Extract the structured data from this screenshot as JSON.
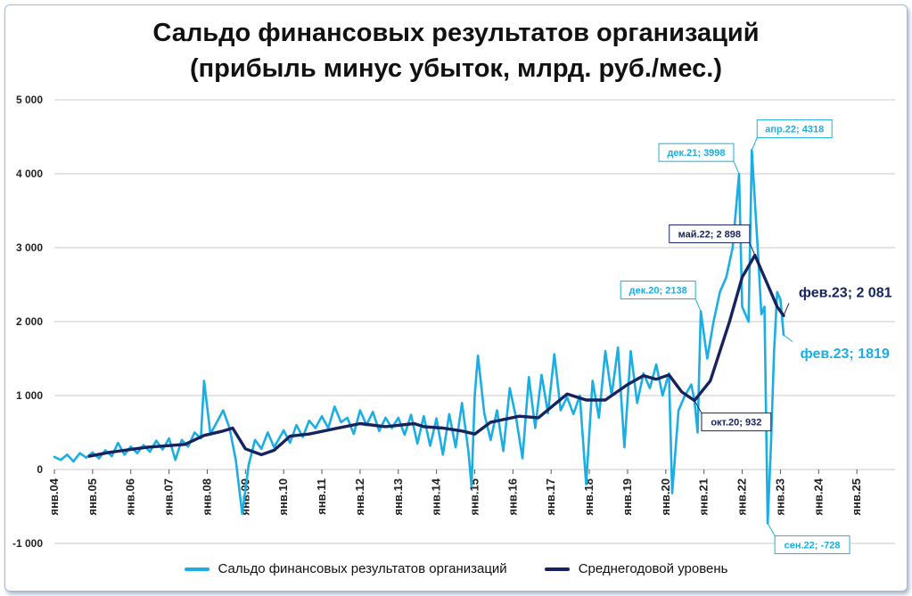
{
  "colors": {
    "monthly": "#1aaee3",
    "average": "#16235e",
    "grid": "#c9c9c9"
  },
  "chart_data": {
    "type": "line",
    "title_line1": "Сальдо финансовых результатов организаций",
    "title_line2": "(прибыль минус убыток, млрд. руб./мес.)",
    "xlabel": "",
    "ylabel": "",
    "x_start": "2004-01",
    "xlim": [
      "2004-01",
      "2026-01"
    ],
    "ylim": [
      -1000,
      5000
    ],
    "yticks": [
      {
        "value": 5000,
        "label": "5 000"
      },
      {
        "value": 4000,
        "label": "4 000"
      },
      {
        "value": 3000,
        "label": "3 000"
      },
      {
        "value": 2000,
        "label": "2 000"
      },
      {
        "value": 1000,
        "label": "1 000"
      },
      {
        "value": 0,
        "label": "0"
      },
      {
        "value": -1000,
        "label": "-1 000"
      }
    ],
    "xticks": [
      {
        "date": "2004-01",
        "label": "янв.04"
      },
      {
        "date": "2005-01",
        "label": "янв.05"
      },
      {
        "date": "2006-01",
        "label": "янв.06"
      },
      {
        "date": "2007-01",
        "label": "янв.07"
      },
      {
        "date": "2008-01",
        "label": "янв.08"
      },
      {
        "date": "2009-01",
        "label": "янв.09"
      },
      {
        "date": "2010-01",
        "label": "янв.10"
      },
      {
        "date": "2011-01",
        "label": "янв.11"
      },
      {
        "date": "2012-01",
        "label": "янв.12"
      },
      {
        "date": "2013-01",
        "label": "янв.13"
      },
      {
        "date": "2014-01",
        "label": "янв.14"
      },
      {
        "date": "2015-01",
        "label": "янв.15"
      },
      {
        "date": "2016-01",
        "label": "янв.16"
      },
      {
        "date": "2017-01",
        "label": "янв.17"
      },
      {
        "date": "2018-01",
        "label": "янв.18"
      },
      {
        "date": "2019-01",
        "label": "янв.19"
      },
      {
        "date": "2020-01",
        "label": "янв.20"
      },
      {
        "date": "2021-01",
        "label": "янв.21"
      },
      {
        "date": "2022-01",
        "label": "янв.22"
      },
      {
        "date": "2023-01",
        "label": "янв.23"
      },
      {
        "date": "2024-01",
        "label": "янв.24"
      },
      {
        "date": "2025-01",
        "label": "янв.25"
      }
    ],
    "grid": true,
    "legend_position": "bottom",
    "series": [
      {
        "name": "Сальдо финансовых результатов организаций",
        "color": "#1aaee3",
        "points": [
          [
            "2004-01",
            170
          ],
          [
            "2004-03",
            130
          ],
          [
            "2004-05",
            200
          ],
          [
            "2004-07",
            110
          ],
          [
            "2004-09",
            220
          ],
          [
            "2004-11",
            160
          ],
          [
            "2005-01",
            230
          ],
          [
            "2005-03",
            150
          ],
          [
            "2005-05",
            260
          ],
          [
            "2005-07",
            180
          ],
          [
            "2005-09",
            360
          ],
          [
            "2005-11",
            200
          ],
          [
            "2006-01",
            310
          ],
          [
            "2006-03",
            220
          ],
          [
            "2006-05",
            330
          ],
          [
            "2006-07",
            240
          ],
          [
            "2006-09",
            390
          ],
          [
            "2006-11",
            270
          ],
          [
            "2007-01",
            420
          ],
          [
            "2007-03",
            130
          ],
          [
            "2007-05",
            400
          ],
          [
            "2007-07",
            310
          ],
          [
            "2007-09",
            500
          ],
          [
            "2007-11",
            420
          ],
          [
            "2007-12",
            1200
          ],
          [
            "2008-02",
            480
          ],
          [
            "2008-04",
            640
          ],
          [
            "2008-06",
            800
          ],
          [
            "2008-08",
            560
          ],
          [
            "2008-10",
            120
          ],
          [
            "2008-12",
            -600
          ],
          [
            "2009-02",
            60
          ],
          [
            "2009-04",
            400
          ],
          [
            "2009-06",
            280
          ],
          [
            "2009-08",
            500
          ],
          [
            "2009-10",
            300
          ],
          [
            "2010-01",
            530
          ],
          [
            "2010-03",
            360
          ],
          [
            "2010-05",
            600
          ],
          [
            "2010-07",
            440
          ],
          [
            "2010-09",
            660
          ],
          [
            "2010-11",
            560
          ],
          [
            "2011-01",
            720
          ],
          [
            "2011-03",
            560
          ],
          [
            "2011-05",
            850
          ],
          [
            "2011-07",
            640
          ],
          [
            "2011-09",
            700
          ],
          [
            "2011-11",
            480
          ],
          [
            "2012-01",
            800
          ],
          [
            "2012-03",
            600
          ],
          [
            "2012-05",
            780
          ],
          [
            "2012-07",
            520
          ],
          [
            "2012-09",
            700
          ],
          [
            "2012-11",
            560
          ],
          [
            "2013-01",
            700
          ],
          [
            "2013-03",
            470
          ],
          [
            "2013-05",
            740
          ],
          [
            "2013-07",
            350
          ],
          [
            "2013-09",
            720
          ],
          [
            "2013-11",
            320
          ],
          [
            "2014-01",
            690
          ],
          [
            "2014-03",
            200
          ],
          [
            "2014-05",
            750
          ],
          [
            "2014-07",
            300
          ],
          [
            "2014-09",
            900
          ],
          [
            "2014-11",
            250
          ],
          [
            "2014-12",
            -230
          ],
          [
            "2015-01",
            1000
          ],
          [
            "2015-02",
            1540
          ],
          [
            "2015-04",
            760
          ],
          [
            "2015-06",
            400
          ],
          [
            "2015-08",
            800
          ],
          [
            "2015-10",
            250
          ],
          [
            "2015-12",
            1100
          ],
          [
            "2016-02",
            700
          ],
          [
            "2016-04",
            150
          ],
          [
            "2016-06",
            1250
          ],
          [
            "2016-08",
            560
          ],
          [
            "2016-10",
            1280
          ],
          [
            "2016-12",
            760
          ],
          [
            "2017-02",
            1560
          ],
          [
            "2017-04",
            800
          ],
          [
            "2017-06",
            980
          ],
          [
            "2017-08",
            750
          ],
          [
            "2017-10",
            1000
          ],
          [
            "2017-12",
            -200
          ],
          [
            "2018-02",
            1200
          ],
          [
            "2018-04",
            700
          ],
          [
            "2018-06",
            1600
          ],
          [
            "2018-08",
            1000
          ],
          [
            "2018-10",
            1650
          ],
          [
            "2018-12",
            300
          ],
          [
            "2019-02",
            1600
          ],
          [
            "2019-04",
            900
          ],
          [
            "2019-06",
            1300
          ],
          [
            "2019-08",
            1100
          ],
          [
            "2019-10",
            1420
          ],
          [
            "2019-12",
            1000
          ],
          [
            "2020-02",
            1300
          ],
          [
            "2020-03",
            -320
          ],
          [
            "2020-05",
            800
          ],
          [
            "2020-07",
            1000
          ],
          [
            "2020-09",
            1150
          ],
          [
            "2020-10",
            932
          ],
          [
            "2020-11",
            500
          ],
          [
            "2020-12",
            2138
          ],
          [
            "2021-02",
            1500
          ],
          [
            "2021-04",
            2000
          ],
          [
            "2021-06",
            2400
          ],
          [
            "2021-08",
            2600
          ],
          [
            "2021-10",
            3000
          ],
          [
            "2021-12",
            3998
          ],
          [
            "2022-01",
            2200
          ],
          [
            "2022-03",
            2000
          ],
          [
            "2022-04",
            4318
          ],
          [
            "2022-06",
            2900
          ],
          [
            "2022-07",
            2100
          ],
          [
            "2022-08",
            2200
          ],
          [
            "2022-09",
            -728
          ],
          [
            "2022-10",
            300
          ],
          [
            "2022-11",
            1600
          ],
          [
            "2022-12",
            2400
          ],
          [
            "2023-01",
            2300
          ],
          [
            "2023-02",
            1819
          ]
        ]
      },
      {
        "name": "Среднегодовой уровень",
        "color": "#16235e",
        "points": [
          [
            "2004-12",
            180
          ],
          [
            "2005-06",
            230
          ],
          [
            "2006-06",
            300
          ],
          [
            "2007-06",
            340
          ],
          [
            "2007-12",
            460
          ],
          [
            "2008-06",
            520
          ],
          [
            "2008-09",
            560
          ],
          [
            "2009-01",
            280
          ],
          [
            "2009-06",
            200
          ],
          [
            "2009-10",
            260
          ],
          [
            "2010-03",
            450
          ],
          [
            "2010-09",
            480
          ],
          [
            "2011-06",
            560
          ],
          [
            "2012-01",
            620
          ],
          [
            "2012-09",
            580
          ],
          [
            "2013-06",
            620
          ],
          [
            "2013-09",
            580
          ],
          [
            "2014-03",
            560
          ],
          [
            "2014-09",
            520
          ],
          [
            "2015-01",
            480
          ],
          [
            "2015-06",
            640
          ],
          [
            "2016-03",
            720
          ],
          [
            "2016-09",
            700
          ],
          [
            "2017-06",
            1020
          ],
          [
            "2017-12",
            940
          ],
          [
            "2018-06",
            940
          ],
          [
            "2019-01",
            1150
          ],
          [
            "2019-06",
            1270
          ],
          [
            "2019-10",
            1220
          ],
          [
            "2020-02",
            1280
          ],
          [
            "2020-06",
            1050
          ],
          [
            "2020-10",
            932
          ],
          [
            "2021-03",
            1200
          ],
          [
            "2021-09",
            2000
          ],
          [
            "2022-01",
            2600
          ],
          [
            "2022-05",
            2898
          ],
          [
            "2022-09",
            2500
          ],
          [
            "2022-12",
            2200
          ],
          [
            "2023-02",
            2081
          ]
        ]
      }
    ],
    "annotations": [
      {
        "date": "2021-12",
        "value": 3998,
        "text": "дек.21; 3998",
        "series": 0,
        "place": "left-above",
        "size": "small"
      },
      {
        "date": "2022-04",
        "value": 4318,
        "text": "апр.22; 4318",
        "series": 0,
        "place": "right-above",
        "size": "small"
      },
      {
        "date": "2020-12",
        "value": 2138,
        "text": "дек.20; 2138",
        "series": 0,
        "place": "left-above",
        "size": "small"
      },
      {
        "date": "2022-09",
        "value": -728,
        "text": "сен.22; -728",
        "series": 0,
        "place": "right-below",
        "size": "small"
      },
      {
        "date": "2023-02",
        "value": 1819,
        "text": "фев.23; 1819",
        "series": 0,
        "place": "right",
        "size": "large"
      },
      {
        "date": "2022-05",
        "value": 2898,
        "text": "май.22; 2 898",
        "series": 1,
        "place": "left-above",
        "size": "small"
      },
      {
        "date": "2020-10",
        "value": 932,
        "text": "окт.20; 932",
        "series": 1,
        "place": "right-below",
        "size": "small"
      },
      {
        "date": "2023-02",
        "value": 2081,
        "text": "фев.23; 2 081",
        "series": 1,
        "place": "right-above",
        "size": "large"
      }
    ]
  }
}
